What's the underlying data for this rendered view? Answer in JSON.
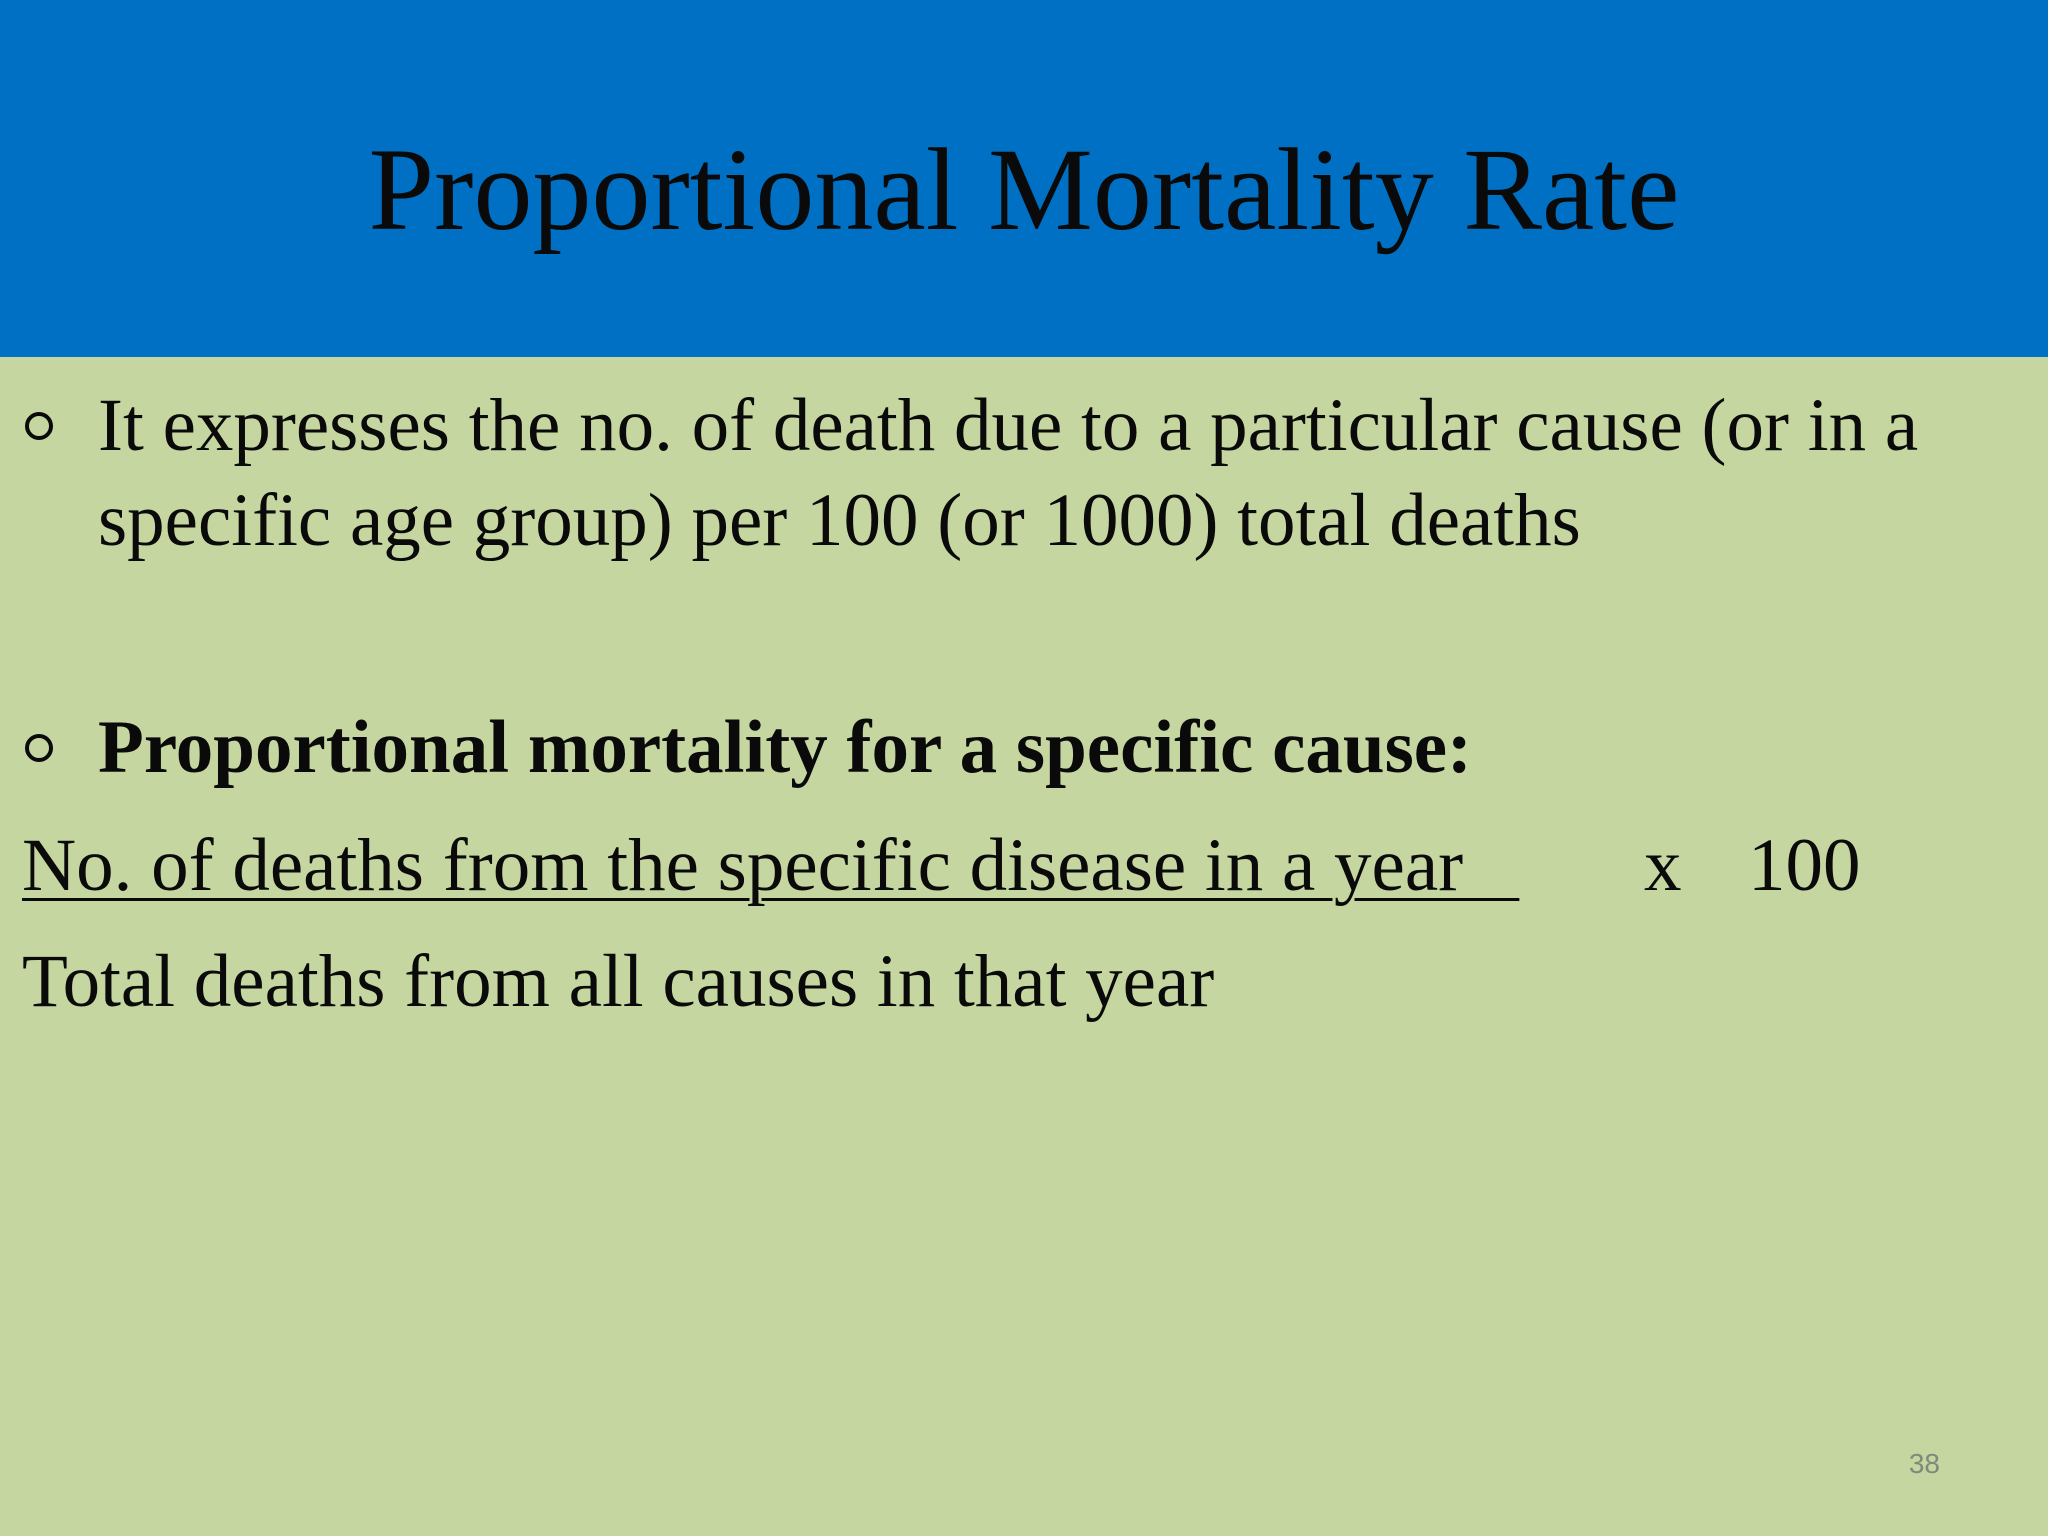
{
  "slide": {
    "title": "Proportional Mortality Rate",
    "bullets": [
      {
        "text": "It expresses the no. of death due to a particular cause (or in a specific age group) per 100 (or 1000) total deaths"
      },
      {
        "text": "Proportional mortality for a specific cause:"
      }
    ],
    "formula": {
      "numerator": "No. of deaths from the specific disease in a year   ",
      "operator": "x",
      "multiplier": "100",
      "denominator": "Total deaths from all causes in that year"
    },
    "page_number": "38",
    "colors": {
      "title_band": "#0070c4",
      "background": "#c6d6a0",
      "text": "#0a0a0a"
    }
  }
}
